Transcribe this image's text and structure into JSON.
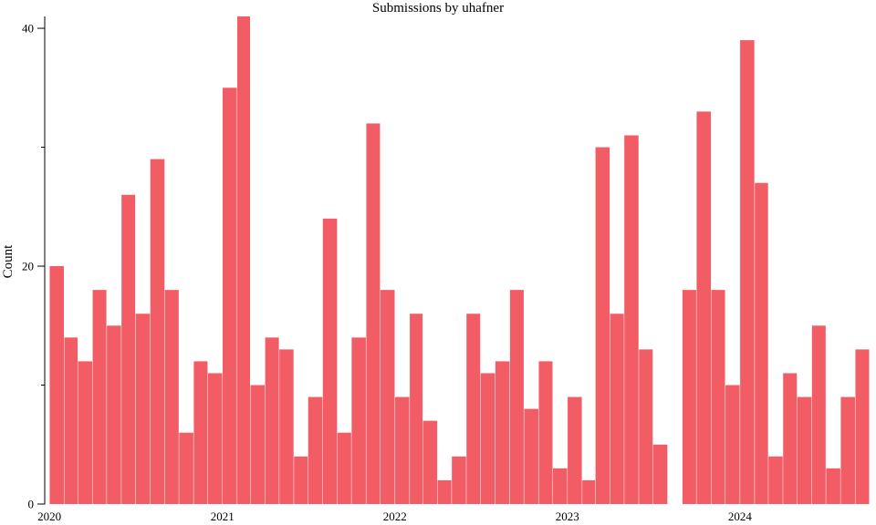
{
  "chart_data": {
    "type": "bar",
    "title": "Submissions by uhafner",
    "xlabel": "",
    "ylabel": "Count",
    "ylim": [
      0,
      41
    ],
    "yticks_labeled": [
      0,
      20,
      40
    ],
    "yticks_minor": [
      10,
      30
    ],
    "xlim": [
      "2019-12-22",
      "2024-10-15"
    ],
    "xticks": [
      {
        "label": "2020",
        "date": "2020-01-01"
      },
      {
        "label": "2021",
        "date": "2021-01-01"
      },
      {
        "label": "2022",
        "date": "2022-01-01"
      },
      {
        "label": "2023",
        "date": "2023-01-01"
      },
      {
        "label": "2024",
        "date": "2024-01-01"
      }
    ],
    "bar_color": "#f25c65",
    "grid": false,
    "series": [
      {
        "x": [
          "2020-01",
          "2020-02",
          "2020-03",
          "2020-04",
          "2020-05",
          "2020-06",
          "2020-07",
          "2020-08",
          "2020-09",
          "2020-10",
          "2020-11",
          "2020-12",
          "2021-01",
          "2021-02",
          "2021-03",
          "2021-04",
          "2021-05",
          "2021-06",
          "2021-07",
          "2021-08",
          "2021-09",
          "2021-10",
          "2021-11",
          "2021-12",
          "2022-01",
          "2022-02",
          "2022-03",
          "2022-04",
          "2022-05",
          "2022-06",
          "2022-07",
          "2022-08",
          "2022-09",
          "2022-10",
          "2022-11",
          "2022-12",
          "2023-01",
          "2023-02",
          "2023-03",
          "2023-04",
          "2023-05",
          "2023-06",
          "2023-07",
          "2023-08",
          "2023-09",
          "2023-10",
          "2023-11",
          "2023-12",
          "2024-01",
          "2024-02",
          "2024-03",
          "2024-04",
          "2024-05",
          "2024-06",
          "2024-07",
          "2024-08",
          "2024-09"
        ],
        "values": [
          20,
          14,
          12,
          18,
          15,
          26,
          16,
          29,
          18,
          6,
          12,
          11,
          35,
          41,
          10,
          14,
          13,
          4,
          9,
          24,
          6,
          14,
          32,
          18,
          9,
          16,
          7,
          2,
          4,
          16,
          11,
          12,
          18,
          8,
          12,
          3,
          9,
          2,
          30,
          16,
          31,
          13,
          5,
          0,
          18,
          33,
          18,
          10,
          39,
          27,
          4,
          11,
          9,
          15,
          3,
          9,
          13
        ]
      }
    ]
  }
}
